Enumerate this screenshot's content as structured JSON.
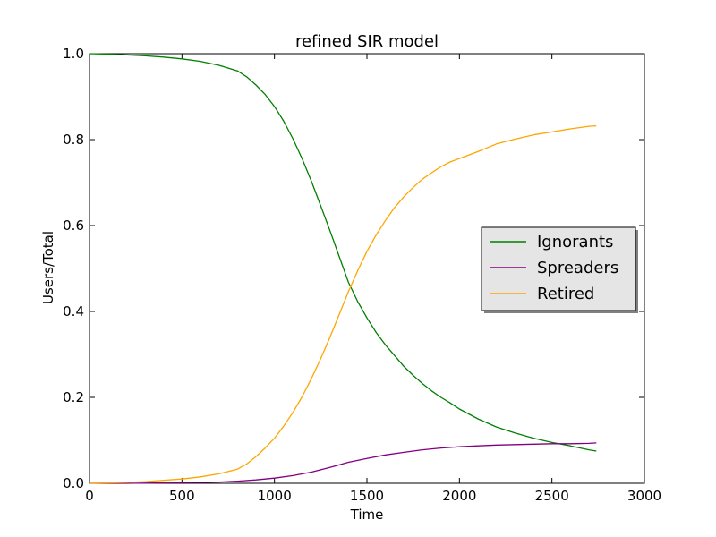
{
  "chart_data": {
    "type": "line",
    "title": "refined SIR model",
    "xlabel": "Time",
    "ylabel": "Users/Total",
    "xlim": [
      0,
      3000
    ],
    "ylim": [
      0.0,
      1.0
    ],
    "xticks": [
      "0",
      "500",
      "1000",
      "1500",
      "2000",
      "2500",
      "3000"
    ],
    "yticks": [
      "0.0",
      "0.2",
      "0.4",
      "0.6",
      "0.8",
      "1.0"
    ],
    "grid": false,
    "legend_position": "center-right",
    "series": [
      {
        "name": "Ignorants",
        "color": "#008000",
        "x": [
          0,
          100,
          200,
          300,
          400,
          500,
          600,
          700,
          800,
          850,
          900,
          950,
          1000,
          1050,
          1100,
          1150,
          1200,
          1250,
          1300,
          1350,
          1400,
          1450,
          1500,
          1550,
          1600,
          1650,
          1700,
          1750,
          1800,
          1850,
          1900,
          1950,
          2000,
          2100,
          2200,
          2300,
          2400,
          2500,
          2600,
          2700,
          2740
        ],
        "y": [
          1.0,
          0.999,
          0.997,
          0.995,
          0.992,
          0.988,
          0.982,
          0.973,
          0.96,
          0.946,
          0.927,
          0.905,
          0.877,
          0.843,
          0.802,
          0.755,
          0.703,
          0.646,
          0.588,
          0.528,
          0.468,
          0.423,
          0.385,
          0.351,
          0.322,
          0.297,
          0.272,
          0.251,
          0.232,
          0.215,
          0.2,
          0.187,
          0.173,
          0.15,
          0.131,
          0.117,
          0.105,
          0.095,
          0.087,
          0.078,
          0.075
        ]
      },
      {
        "name": "Spreaders",
        "color": "#800080",
        "x": [
          0,
          200,
          400,
          600,
          700,
          800,
          900,
          1000,
          1100,
          1200,
          1300,
          1400,
          1500,
          1600,
          1700,
          1800,
          1900,
          2000,
          2100,
          2200,
          2300,
          2400,
          2500,
          2600,
          2700,
          2740
        ],
        "y": [
          0.0,
          0.0,
          0.001,
          0.002,
          0.003,
          0.005,
          0.008,
          0.012,
          0.018,
          0.026,
          0.037,
          0.049,
          0.058,
          0.066,
          0.072,
          0.078,
          0.082,
          0.085,
          0.087,
          0.089,
          0.09,
          0.091,
          0.092,
          0.092,
          0.093,
          0.094
        ]
      },
      {
        "name": "Retired",
        "color": "#ffa500",
        "x": [
          0,
          100,
          200,
          300,
          400,
          500,
          600,
          700,
          800,
          850,
          900,
          950,
          1000,
          1050,
          1100,
          1150,
          1200,
          1250,
          1300,
          1350,
          1400,
          1450,
          1500,
          1550,
          1600,
          1650,
          1700,
          1750,
          1800,
          1850,
          1900,
          1950,
          2000,
          2100,
          2200,
          2300,
          2400,
          2500,
          2600,
          2700,
          2740
        ],
        "y": [
          0.0,
          0.001,
          0.002,
          0.004,
          0.007,
          0.01,
          0.015,
          0.022,
          0.033,
          0.045,
          0.062,
          0.082,
          0.105,
          0.133,
          0.165,
          0.202,
          0.244,
          0.29,
          0.34,
          0.393,
          0.446,
          0.495,
          0.54,
          0.578,
          0.612,
          0.642,
          0.667,
          0.689,
          0.708,
          0.723,
          0.737,
          0.748,
          0.756,
          0.772,
          0.79,
          0.801,
          0.811,
          0.818,
          0.825,
          0.831,
          0.832
        ]
      }
    ]
  }
}
